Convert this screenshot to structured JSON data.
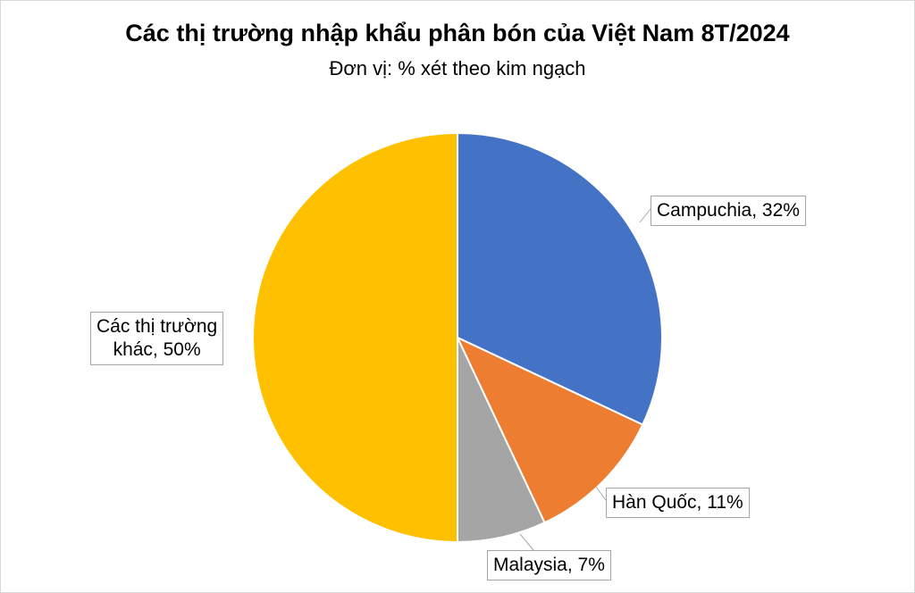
{
  "chart_data": {
    "type": "pie",
    "title": "Các thị trường nhập khẩu phân bón của Việt Nam 8T/2024",
    "subtitle": "Đơn vị: % xét theo kim ngạch",
    "slices": [
      {
        "label": "Campuchia",
        "value": 32,
        "color": "#4472C4",
        "data_label": "Campuchia, 32%"
      },
      {
        "label": "Hàn Quốc",
        "value": 11,
        "color": "#ED7D31",
        "data_label": "Hàn Quốc, 11%"
      },
      {
        "label": "Malaysia",
        "value": 7,
        "color": "#A5A5A5",
        "data_label": "Malaysia, 7%"
      },
      {
        "label": "Các thị trường khác",
        "value": 50,
        "color": "#FFC000",
        "data_label_lines": [
          "Các thị trường",
          "khác, 50%"
        ]
      }
    ]
  }
}
